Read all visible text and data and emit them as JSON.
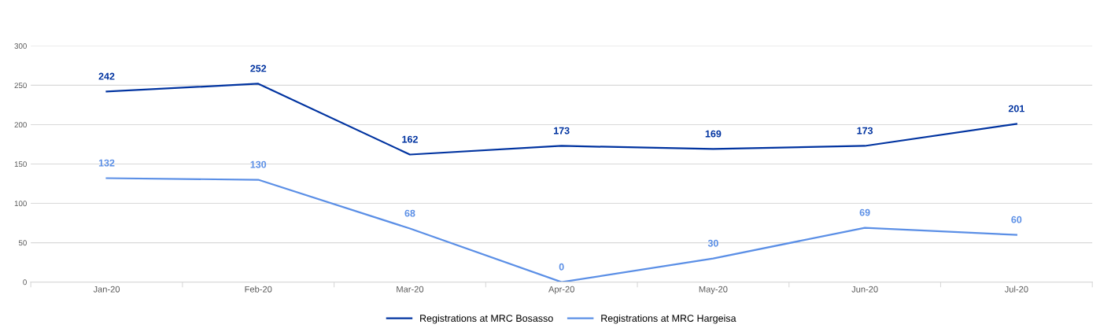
{
  "chart_data": {
    "type": "line",
    "categories": [
      "Jan-20",
      "Feb-20",
      "Mar-20",
      "Apr-20",
      "May-20",
      "Jun-20",
      "Jul-20"
    ],
    "series": [
      {
        "name": "Registrations at MRC Bosasso",
        "color": "#0033a0",
        "values": [
          242,
          252,
          162,
          173,
          169,
          173,
          201
        ]
      },
      {
        "name": "Registrations at MRC Hargeisa",
        "color": "#5b8fe6",
        "values": [
          132,
          130,
          68,
          0,
          30,
          69,
          60
        ]
      }
    ],
    "ylim": [
      0,
      300
    ],
    "yticks": [
      0,
      50,
      100,
      150,
      200,
      250,
      300
    ],
    "grid": "y",
    "legend": "bottom",
    "data_labels": true,
    "marker": "none",
    "line_style": "solid"
  }
}
